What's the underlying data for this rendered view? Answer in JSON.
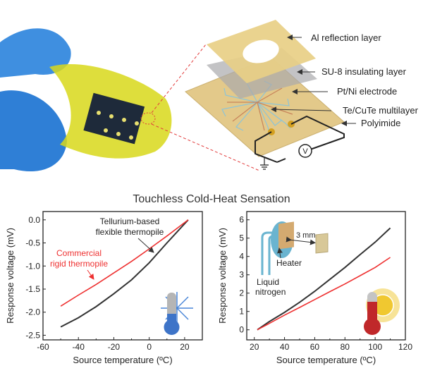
{
  "top_panel": {
    "layers": [
      {
        "label": "Al reflection layer"
      },
      {
        "label": "SU-8 insulating layer"
      },
      {
        "label": "Pt/Ni electrode"
      },
      {
        "label": "Te/CuTe multilayer"
      },
      {
        "label": "Polyimide"
      }
    ],
    "voltmeter_symbol": "V",
    "colors": {
      "film": "#e6d08a",
      "su8": "#a9a9ad",
      "glove": "#3f8fe0",
      "flex_film": "#d8d81a",
      "dashed": "#e23b3b"
    }
  },
  "section_title": "Touchless Cold-Heat Sensation",
  "chart_data": [
    {
      "type": "line",
      "xlabel": "Source temperature  (ºC)",
      "ylabel": "Response voltage (mV)",
      "xlim": [
        -60,
        30
      ],
      "ylim": [
        -2.6,
        0.18
      ],
      "xticks": [
        -60,
        -40,
        -20,
        0,
        20
      ],
      "yticks": [
        0.0,
        -0.5,
        -1.0,
        -1.5,
        -2.0,
        -2.5
      ],
      "ytick_labels": [
        "0.0",
        "-0.5",
        "-1.0",
        "-1.5",
        "-2.0",
        "-2.5"
      ],
      "grid": false,
      "series": [
        {
          "name": "Tellurium-based flexible thermopile",
          "color": "#333333",
          "x": [
            -50,
            -40,
            -30,
            -20,
            -10,
            0,
            10,
            22
          ],
          "y": [
            -2.32,
            -2.12,
            -1.88,
            -1.6,
            -1.3,
            -0.93,
            -0.5,
            0.0
          ]
        },
        {
          "name": "Commercial rigid thermopile",
          "color": "#ee3030",
          "x": [
            -50,
            -40,
            -30,
            -20,
            -10,
            0,
            10,
            22
          ],
          "y": [
            -1.87,
            -1.63,
            -1.4,
            -1.15,
            -0.9,
            -0.63,
            -0.35,
            0.0
          ]
        }
      ],
      "annotations": [
        {
          "text_lines": [
            "Tellurium-based",
            "flexible thermopile"
          ],
          "color": "#222222"
        },
        {
          "text_lines": [
            "Commercial",
            "rigid thermopile"
          ],
          "color": "#ee3030"
        }
      ],
      "icon": "thermometer-snowflake-icon"
    },
    {
      "type": "line",
      "xlabel": "Source temperature (ºC)",
      "ylabel": "Response voltage (mV)",
      "xlim": [
        15,
        120
      ],
      "ylim": [
        -0.55,
        6.45
      ],
      "xticks": [
        20,
        40,
        60,
        80,
        100,
        120
      ],
      "yticks": [
        0,
        1,
        2,
        3,
        4,
        5,
        6
      ],
      "ytick_labels": [
        "0",
        "1",
        "2",
        "3",
        "4",
        "5",
        "6"
      ],
      "grid": false,
      "series": [
        {
          "color": "#333333",
          "x": [
            22,
            30,
            40,
            50,
            60,
            70,
            80,
            90,
            100,
            110
          ],
          "y": [
            0.0,
            0.45,
            0.95,
            1.5,
            2.1,
            2.75,
            3.4,
            4.1,
            4.78,
            5.55
          ]
        },
        {
          "color": "#ee3030",
          "x": [
            22,
            30,
            40,
            50,
            60,
            70,
            80,
            90,
            100,
            110
          ],
          "y": [
            0.0,
            0.35,
            0.8,
            1.22,
            1.65,
            2.08,
            2.5,
            2.95,
            3.4,
            3.95
          ]
        }
      ],
      "inset": {
        "heater_label": "Heater",
        "distance_label": "3 mm",
        "coolant_label_lines": [
          "Liquid",
          "nitrogen"
        ]
      },
      "icon": "thermometer-sun-icon"
    }
  ]
}
